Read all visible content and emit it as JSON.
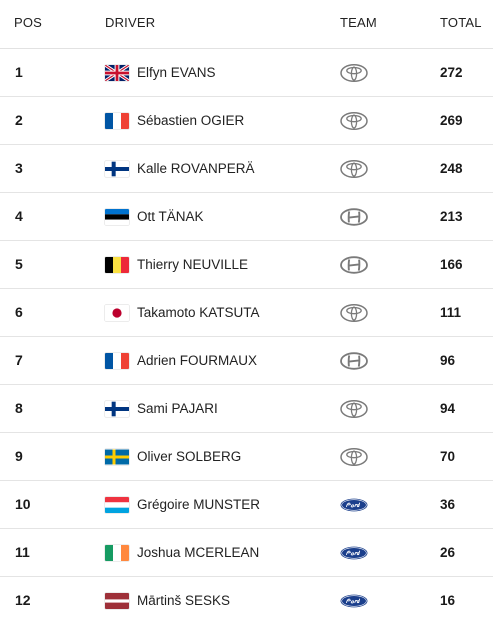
{
  "header": {
    "pos": "POS",
    "driver": "DRIVER",
    "team": "TEAM",
    "total": "TOTAL"
  },
  "rows": [
    {
      "pos": "1",
      "flag": "gb",
      "driver": "Elfyn EVANS",
      "team_icon": "toyota-logo-icon",
      "total": "272"
    },
    {
      "pos": "2",
      "flag": "fr",
      "driver": "Sébastien OGIER",
      "team_icon": "toyota-logo-icon",
      "total": "269"
    },
    {
      "pos": "3",
      "flag": "fi",
      "driver": "Kalle ROVANPERÄ",
      "team_icon": "toyota-logo-icon",
      "total": "248"
    },
    {
      "pos": "4",
      "flag": "ee",
      "driver": "Ott TÄNAK",
      "team_icon": "hyundai-logo-icon",
      "total": "213"
    },
    {
      "pos": "5",
      "flag": "be",
      "driver": "Thierry NEUVILLE",
      "team_icon": "hyundai-logo-icon",
      "total": "166"
    },
    {
      "pos": "6",
      "flag": "jp",
      "driver": "Takamoto KATSUTA",
      "team_icon": "toyota-logo-icon",
      "total": "111"
    },
    {
      "pos": "7",
      "flag": "fr",
      "driver": "Adrien FOURMAUX",
      "team_icon": "hyundai-logo-icon",
      "total": "96"
    },
    {
      "pos": "8",
      "flag": "fi",
      "driver": "Sami PAJARI",
      "team_icon": "toyota-logo-icon",
      "total": "94"
    },
    {
      "pos": "9",
      "flag": "se",
      "driver": "Oliver SOLBERG",
      "team_icon": "toyota-logo-icon",
      "total": "70"
    },
    {
      "pos": "10",
      "flag": "lu",
      "driver": "Grégoire MUNSTER",
      "team_icon": "ford-logo-icon",
      "total": "36"
    },
    {
      "pos": "11",
      "flag": "ie",
      "driver": "Joshua MCERLEAN",
      "team_icon": "ford-logo-icon",
      "total": "26"
    },
    {
      "pos": "12",
      "flag": "lv",
      "driver": "Mārtinš SESKS",
      "team_icon": "ford-logo-icon",
      "total": "16"
    }
  ],
  "colors": {
    "ford_blue": "#1b3f8c",
    "logo_gray": "#7a7a7a",
    "divider": "#e4e4e4"
  }
}
